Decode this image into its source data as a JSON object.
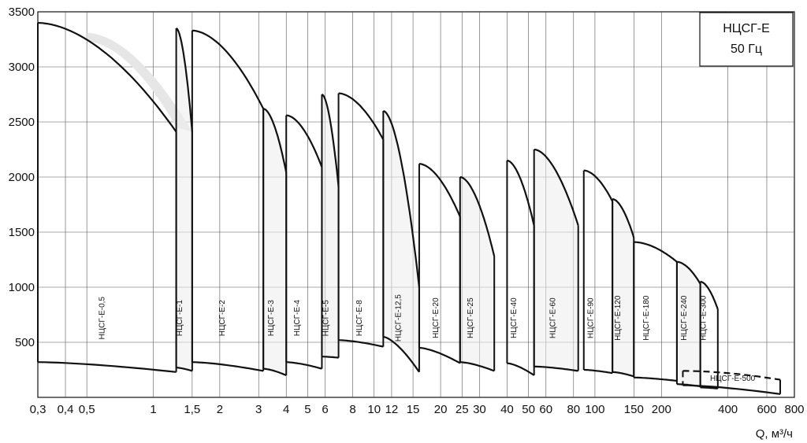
{
  "chart_data": {
    "type": "area",
    "legend_box": {
      "line1": "НЦСГ-Е",
      "line2": "50 Гц",
      "placement": "top-right"
    },
    "xlabel": "Q, м³/ч",
    "ylabel": "",
    "x_scale": "log",
    "xlim": [
      0.3,
      800
    ],
    "ylim": [
      0,
      3500
    ],
    "grid": true,
    "x_ticks": [
      {
        "v": 0.3,
        "label": "0,3"
      },
      {
        "v": 0.4,
        "label": "0,4"
      },
      {
        "v": 0.5,
        "label": "0,5"
      },
      {
        "v": 1,
        "label": "1"
      },
      {
        "v": 1.5,
        "label": "1,5"
      },
      {
        "v": 2,
        "label": "2"
      },
      {
        "v": 3,
        "label": "3"
      },
      {
        "v": 4,
        "label": "4"
      },
      {
        "v": 5,
        "label": "5"
      },
      {
        "v": 6,
        "label": "6"
      },
      {
        "v": 8,
        "label": "8"
      },
      {
        "v": 10,
        "label": "10"
      },
      {
        "v": 12,
        "label": "12"
      },
      {
        "v": 15,
        "label": "15"
      },
      {
        "v": 20,
        "label": "20"
      },
      {
        "v": 25,
        "label": "25"
      },
      {
        "v": 30,
        "label": "30"
      },
      {
        "v": 40,
        "label": "40"
      },
      {
        "v": 50,
        "label": "50"
      },
      {
        "v": 60,
        "label": "60"
      },
      {
        "v": 80,
        "label": "80"
      },
      {
        "v": 100,
        "label": "100"
      },
      {
        "v": 150,
        "label": "150"
      },
      {
        "v": 200,
        "label": "200"
      },
      {
        "v": 400,
        "label": "400"
      },
      {
        "v": 600,
        "label": "600"
      },
      {
        "v": 800,
        "label": "800"
      }
    ],
    "y_ticks": [
      {
        "v": 500,
        "label": "500"
      },
      {
        "v": 1000,
        "label": "1000"
      },
      {
        "v": 1500,
        "label": "1500"
      },
      {
        "v": 2000,
        "label": "2000"
      },
      {
        "v": 2500,
        "label": "2500"
      },
      {
        "v": 3000,
        "label": "3000"
      },
      {
        "v": 3500,
        "label": "3500"
      }
    ],
    "series": [
      {
        "name": "НЦСГ-Е-0,5",
        "label_x": 0.6,
        "label_y": 720,
        "q": [
          0.3,
          1.27
        ],
        "top_l": 3400,
        "top_r": 2410,
        "bot_l": 320,
        "bot_r": 230,
        "shade": {
          "q": [
            0.5,
            1.5
          ],
          "top_l": 3310,
          "top_r": 2410,
          "inner_l": 3230,
          "inner_r": 2450
        }
      },
      {
        "name": "НЦСГ-Е-1",
        "label_x": 1.35,
        "label_y": 720,
        "q": [
          1.27,
          1.5
        ],
        "top_l": 3350,
        "top_r": 2410,
        "bot_l": 270,
        "bot_r": 240
      },
      {
        "name": "НЦСГ-Е-2",
        "label_x": 2.1,
        "label_y": 720,
        "q": [
          1.5,
          3.15
        ],
        "top_l": 3330,
        "top_r": 2620,
        "bot_l": 320,
        "bot_r": 240
      },
      {
        "name": "НЦСГ-Е-3",
        "label_x": 3.5,
        "label_y": 720,
        "q": [
          3.15,
          4.0
        ],
        "top_l": 2620,
        "top_r": 2040,
        "bot_l": 260,
        "bot_r": 200
      },
      {
        "name": "НЦСГ-Е-4",
        "label_x": 4.6,
        "label_y": 720,
        "q": [
          4.0,
          5.8
        ],
        "top_l": 2560,
        "top_r": 2090,
        "bot_l": 320,
        "bot_r": 260
      },
      {
        "name": "НЦСГ-Е-5",
        "label_x": 6.2,
        "label_y": 720,
        "q": [
          5.8,
          6.9
        ],
        "top_l": 2750,
        "top_r": 1910,
        "bot_l": 370,
        "bot_r": 360
      },
      {
        "name": "НЦСГ-Е-8",
        "label_x": 8.8,
        "label_y": 720,
        "q": [
          6.9,
          11.0
        ],
        "top_l": 2760,
        "top_r": 2340,
        "bot_l": 520,
        "bot_r": 460
      },
      {
        "name": "НЦСГ-Е-12,5",
        "label_x": 13.2,
        "label_y": 720,
        "q": [
          11.0,
          16.0
        ],
        "top_l": 2600,
        "top_r": 1000,
        "bot_l": 550,
        "bot_r": 230
      },
      {
        "name": "НЦСГ-Е-20",
        "label_x": 19.5,
        "label_y": 720,
        "q": [
          16.0,
          24.5
        ],
        "top_l": 2120,
        "top_r": 1640,
        "bot_l": 450,
        "bot_r": 310
      },
      {
        "name": "НЦСГ-Е-25",
        "label_x": 28.0,
        "label_y": 720,
        "q": [
          24.5,
          35.0
        ],
        "top_l": 2000,
        "top_r": 1280,
        "bot_l": 320,
        "bot_r": 240
      },
      {
        "name": "НЦСГ-Е-40",
        "label_x": 44.0,
        "label_y": 720,
        "q": [
          40.0,
          53.0
        ],
        "top_l": 2150,
        "top_r": 1560,
        "bot_l": 310,
        "bot_r": 200
      },
      {
        "name": "НЦСГ-Е-60",
        "label_x": 66.0,
        "label_y": 720,
        "q": [
          53.0,
          84.0
        ],
        "top_l": 2250,
        "top_r": 1560,
        "bot_l": 280,
        "bot_r": 240
      },
      {
        "name": "НЦСГ-Е-90",
        "label_x": 98.0,
        "label_y": 720,
        "q": [
          89.0,
          120.0
        ],
        "top_l": 2060,
        "top_r": 1780,
        "bot_l": 250,
        "bot_r": 220
      },
      {
        "name": "НЦСГ-Е-120",
        "label_x": 130.0,
        "label_y": 720,
        "q": [
          120.0,
          150.0
        ],
        "top_l": 1800,
        "top_r": 1450,
        "bot_l": 230,
        "bot_r": 190
      },
      {
        "name": "НЦСГ-Е-180",
        "label_x": 175.0,
        "label_y": 720,
        "q": [
          150.0,
          235.0
        ],
        "top_l": 1410,
        "top_r": 1230,
        "bot_l": 180,
        "bot_r": 150
      },
      {
        "name": "НЦСГ-Е-240",
        "label_x": 260.0,
        "label_y": 720,
        "q": [
          235.0,
          300.0
        ],
        "top_l": 1230,
        "top_r": 1030,
        "bot_l": 120,
        "bot_r": 100
      },
      {
        "name": "НЦСГ-Е-300",
        "label_x": 318.0,
        "label_y": 720,
        "q": [
          300.0,
          360.0
        ],
        "top_l": 1050,
        "top_r": 800,
        "bot_l": 90,
        "bot_r": 80
      },
      {
        "name": "НЦСГ-Е-500",
        "label_x": 420.0,
        "label_y": 150,
        "q": [
          250.0,
          690.0
        ],
        "top_l": 240,
        "top_r": 160,
        "bot_l": 110,
        "bot_r": 30
      }
    ]
  }
}
